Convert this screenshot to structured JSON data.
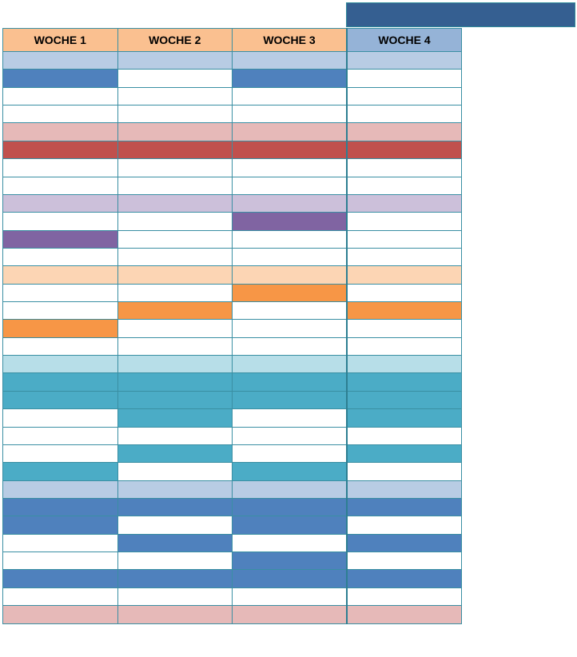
{
  "colors": {
    "header_bar": "#355f91",
    "header_orange": "#fac090",
    "header_blue": "#95b3d7",
    "grid_border": "#3a8fa3",
    "palette": {
      "W": "#ffffff",
      "lb": "#b8cce4",
      "B": "#4f81bd",
      "lp": "#e6b9b8",
      "R": "#c0504d",
      "lv": "#ccc0da",
      "V": "#8064a2",
      "lo": "#fcd5b4",
      "O": "#f79646",
      "lt": "#b7dee8",
      "T": "#4bacc6"
    }
  },
  "header": {
    "weeks": [
      "WOCHE 1",
      "WOCHE 2",
      "WOCHE 3",
      "WOCHE 4"
    ],
    "week_colors": [
      "#fac090",
      "#fac090",
      "#fac090",
      "#95b3d7"
    ]
  },
  "rows": [
    [
      "lb",
      "lb",
      "lb",
      "lb"
    ],
    [
      "B",
      "W",
      "B",
      "W"
    ],
    [
      "W",
      "W",
      "W",
      "W"
    ],
    [
      "W",
      "W",
      "W",
      "W"
    ],
    [
      "lp",
      "lp",
      "lp",
      "lp"
    ],
    [
      "R",
      "R",
      "R",
      "R"
    ],
    [
      "W",
      "W",
      "W",
      "W"
    ],
    [
      "W",
      "W",
      "W",
      "W"
    ],
    [
      "lv",
      "lv",
      "lv",
      "lv"
    ],
    [
      "W",
      "W",
      "V",
      "W"
    ],
    [
      "V",
      "W",
      "W",
      "W"
    ],
    [
      "W",
      "W",
      "W",
      "W"
    ],
    [
      "lo",
      "lo",
      "lo",
      "lo"
    ],
    [
      "W",
      "W",
      "O",
      "W"
    ],
    [
      "W",
      "O",
      "W",
      "O"
    ],
    [
      "O",
      "W",
      "W",
      "W"
    ],
    [
      "W",
      "W",
      "W",
      "W"
    ],
    [
      "lt",
      "lt",
      "lt",
      "lt"
    ],
    [
      "T",
      "T",
      "T",
      "T"
    ],
    [
      "T",
      "T",
      "T",
      "T"
    ],
    [
      "W",
      "T",
      "W",
      "T"
    ],
    [
      "W",
      "W",
      "W",
      "W"
    ],
    [
      "W",
      "T",
      "W",
      "T"
    ],
    [
      "T",
      "W",
      "T",
      "W"
    ],
    [
      "lb",
      "lb",
      "lb",
      "lb"
    ],
    [
      "B",
      "B",
      "B",
      "B"
    ],
    [
      "B",
      "W",
      "B",
      "W"
    ],
    [
      "W",
      "B",
      "W",
      "B"
    ],
    [
      "W",
      "W",
      "B",
      "W"
    ],
    [
      "B",
      "B",
      "B",
      "B"
    ],
    [
      "W",
      "W",
      "W",
      "W"
    ],
    [
      "lp",
      "lp",
      "lp",
      "lp"
    ]
  ]
}
